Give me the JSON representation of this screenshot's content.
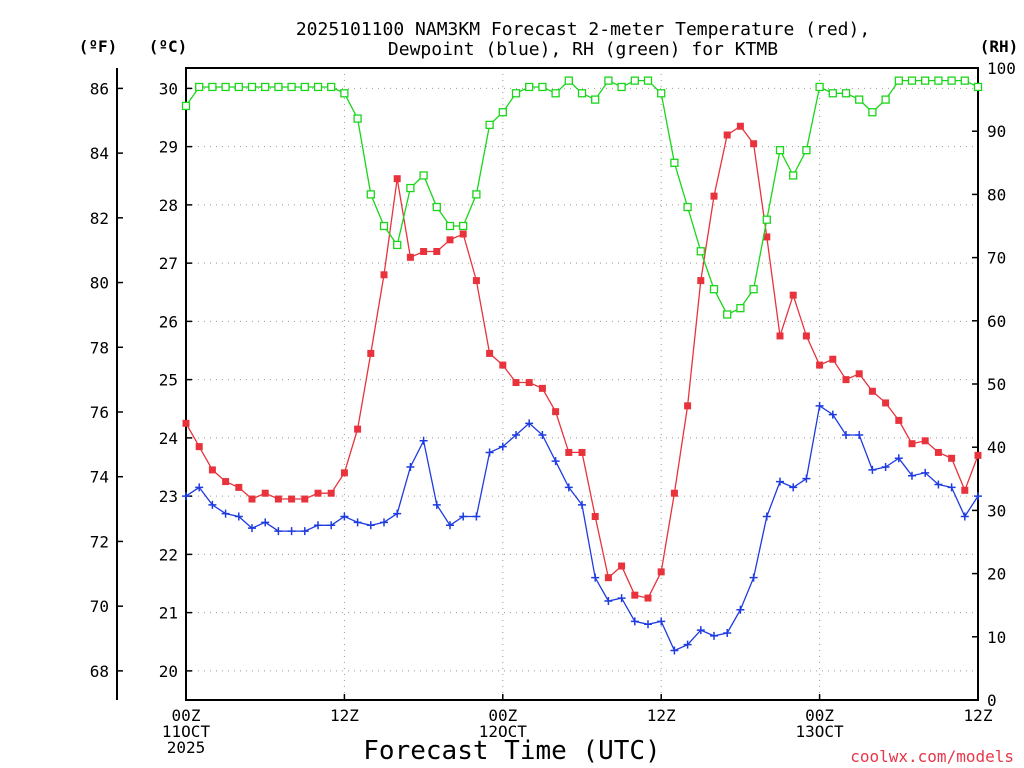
{
  "chart_data": {
    "type": "line",
    "title_lines": [
      "2025101100 NAM3KM Forecast 2-meter Temperature (red),",
      "Dewpoint (blue), RH (green) for KTMB"
    ],
    "xlabel": "Forecast Time (UTC)",
    "credit": "coolwx.com/models",
    "units": {
      "fahrenheit": "(ºF)",
      "celsius": "(ºC)",
      "rh": "(RH)"
    },
    "x_range_hours": [
      0,
      60
    ],
    "x_ticks": [
      {
        "hour": 0,
        "lines": [
          "00Z",
          "11OCT",
          "2025"
        ]
      },
      {
        "hour": 12,
        "lines": [
          "12Z"
        ]
      },
      {
        "hour": 24,
        "lines": [
          "00Z",
          "12OCT"
        ]
      },
      {
        "hour": 36,
        "lines": [
          "12Z"
        ]
      },
      {
        "hour": 48,
        "lines": [
          "00Z",
          "13OCT"
        ]
      },
      {
        "hour": 60,
        "lines": [
          "12Z"
        ]
      }
    ],
    "celsius_range": [
      19.5,
      30.35
    ],
    "celsius_ticks": [
      "20",
      "21",
      "22",
      "23",
      "24",
      "25",
      "26",
      "27",
      "28",
      "29",
      "30"
    ],
    "fahrenheit_ticks": [
      "68",
      "70",
      "72",
      "74",
      "76",
      "78",
      "80",
      "82",
      "84",
      "86"
    ],
    "rh_range": [
      0,
      100
    ],
    "rh_ticks": [
      "0",
      "10",
      "20",
      "30",
      "40",
      "50",
      "60",
      "70",
      "80",
      "90",
      "100"
    ],
    "series": [
      {
        "name": "2-meter Temperature",
        "axis": "celsius",
        "color": "#e8333d",
        "marker": "filled-square",
        "values": [
          24.25,
          23.85,
          23.45,
          23.25,
          23.15,
          22.95,
          23.05,
          22.95,
          22.95,
          22.95,
          23.05,
          23.05,
          23.4,
          24.15,
          25.45,
          26.8,
          28.45,
          27.1,
          27.2,
          27.2,
          27.4,
          27.5,
          26.7,
          25.45,
          25.25,
          24.95,
          24.95,
          24.85,
          24.45,
          23.75,
          23.75,
          22.65,
          21.6,
          21.8,
          21.3,
          21.25,
          21.7,
          23.05,
          24.55,
          26.7,
          28.15,
          29.2,
          29.35,
          29.05,
          27.45,
          25.75,
          26.45,
          25.75,
          25.25,
          25.35,
          25.0,
          25.1,
          24.8,
          24.6,
          24.3,
          23.9,
          23.95,
          23.75,
          23.65,
          23.1,
          23.7
        ]
      },
      {
        "name": "Dewpoint",
        "axis": "celsius",
        "color": "#1e3be0",
        "marker": "plus",
        "values": [
          23.0,
          23.15,
          22.85,
          22.7,
          22.65,
          22.45,
          22.55,
          22.4,
          22.4,
          22.4,
          22.5,
          22.5,
          22.65,
          22.55,
          22.5,
          22.55,
          22.7,
          23.5,
          23.95,
          22.85,
          22.5,
          22.65,
          22.65,
          23.75,
          23.85,
          24.05,
          24.25,
          24.05,
          23.6,
          23.15,
          22.85,
          21.6,
          21.2,
          21.25,
          20.85,
          20.8,
          20.85,
          20.35,
          20.45,
          20.7,
          20.6,
          20.65,
          21.05,
          21.6,
          22.65,
          23.25,
          23.15,
          23.3,
          24.55,
          24.4,
          24.05,
          24.05,
          23.45,
          23.5,
          23.65,
          23.35,
          23.4,
          23.2,
          23.15,
          22.65,
          23.0
        ]
      },
      {
        "name": "Relative Humidity",
        "axis": "rh",
        "color": "#1ad61a",
        "marker": "open-square",
        "values": [
          94,
          97,
          97,
          97,
          97,
          97,
          97,
          97,
          97,
          97,
          97,
          97,
          96,
          92,
          80,
          75,
          72,
          81,
          83,
          78,
          75,
          75,
          80,
          91,
          93,
          96,
          97,
          97,
          96,
          98,
          96,
          95,
          98,
          97,
          98,
          98,
          96,
          85,
          78,
          71,
          65,
          61,
          62,
          65,
          76,
          87,
          83,
          87,
          97,
          96,
          96,
          95,
          93,
          95,
          98,
          98,
          98,
          98,
          98,
          98,
          97
        ]
      }
    ]
  }
}
